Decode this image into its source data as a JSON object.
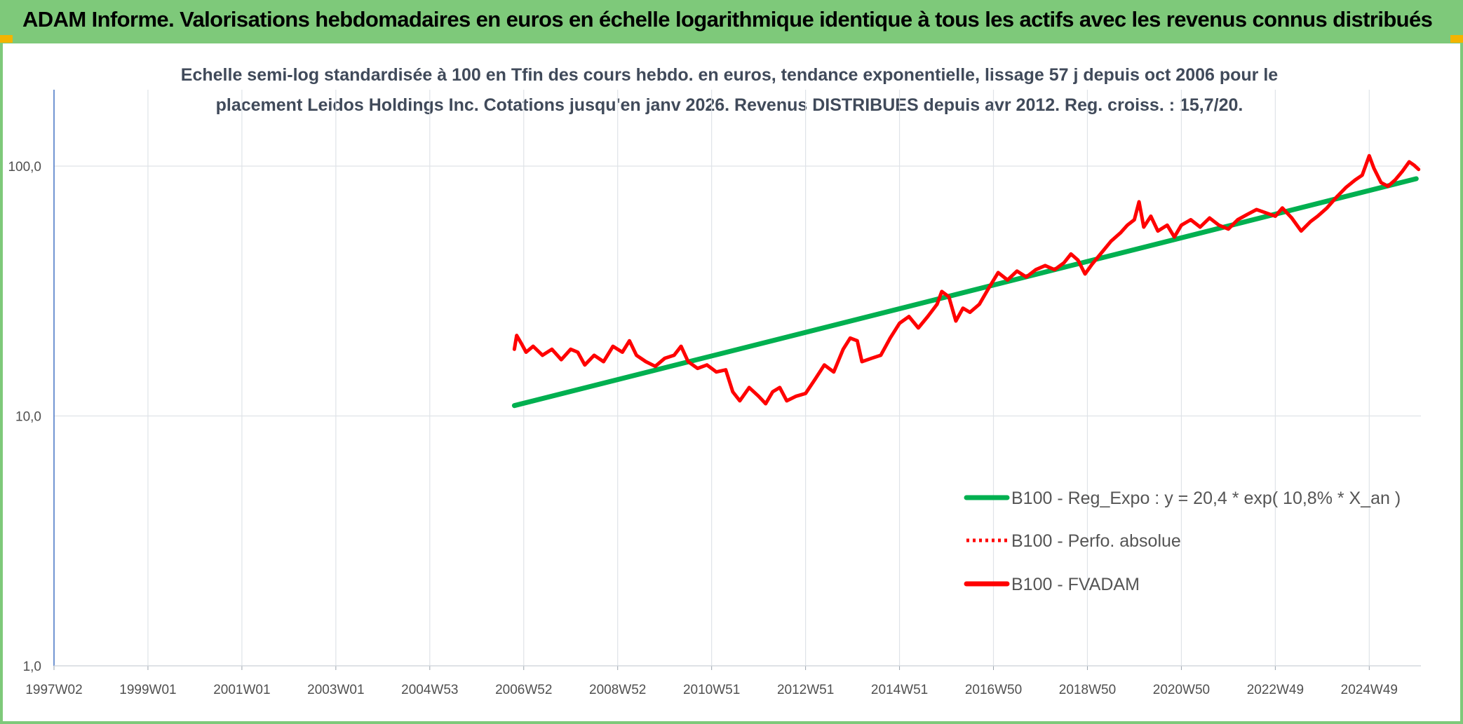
{
  "header": {
    "title": "ADAM Informe. Valorisations hebdomadaires en euros en échelle logarithmique identique à tous les actifs avec les revenus connus distribués"
  },
  "chart_data": {
    "type": "line",
    "title_line1": "Echelle semi-log standardisée à 100 en Tfin des cours hebdo. en euros, tendance exponentielle, lissage 57 j depuis oct 2006 pour le",
    "title_line2": "placement Leidos Holdings Inc. Cotations jusqu'en janv 2026. Revenus DISTRIBUES depuis avr 2012. Reg. croiss. : 15,7/20.",
    "y_scale": "log",
    "ylim": [
      1,
      200
    ],
    "y_ticks": [
      {
        "value": 100,
        "label": "100,0"
      },
      {
        "value": 10,
        "label": "10,0"
      },
      {
        "value": 1,
        "label": "1,0"
      }
    ],
    "xlim": [
      1997.0,
      2026.1
    ],
    "x_ticks": [
      {
        "x": 1997.0,
        "label": "1997W02"
      },
      {
        "x": 1999.0,
        "label": "1999W01"
      },
      {
        "x": 2001.0,
        "label": "2001W01"
      },
      {
        "x": 2003.0,
        "label": "2003W01"
      },
      {
        "x": 2005.0,
        "label": "2004W53"
      },
      {
        "x": 2007.0,
        "label": "2006W52"
      },
      {
        "x": 2009.0,
        "label": "2008W52"
      },
      {
        "x": 2011.0,
        "label": "2010W51"
      },
      {
        "x": 2013.0,
        "label": "2012W51"
      },
      {
        "x": 2015.0,
        "label": "2014W51"
      },
      {
        "x": 2017.0,
        "label": "2016W50"
      },
      {
        "x": 2019.0,
        "label": "2018W50"
      },
      {
        "x": 2021.0,
        "label": "2020W50"
      },
      {
        "x": 2023.0,
        "label": "2022W49"
      },
      {
        "x": 2025.0,
        "label": "2024W49"
      }
    ],
    "legend_position": "bottom-right",
    "series": [
      {
        "name": "B100 - Reg_Expo : y = 20,4 * exp( 10,8% *  X_an )",
        "color": "#00b050",
        "style": "solid",
        "points": [
          [
            2006.8,
            11.0
          ],
          [
            2026.0,
            89.0
          ]
        ]
      },
      {
        "name": "B100 - Perfo. absolue",
        "color": "#ff0000",
        "style": "dotted",
        "points": []
      },
      {
        "name": "B100 - FVADAM",
        "color": "#ff0000",
        "style": "solid",
        "points": [
          [
            2006.8,
            18.5
          ],
          [
            2006.85,
            21.0
          ],
          [
            2006.95,
            19.5
          ],
          [
            2007.05,
            18.0
          ],
          [
            2007.2,
            19.0
          ],
          [
            2007.4,
            17.5
          ],
          [
            2007.6,
            18.5
          ],
          [
            2007.8,
            16.8
          ],
          [
            2008.0,
            18.5
          ],
          [
            2008.15,
            18.0
          ],
          [
            2008.3,
            16.0
          ],
          [
            2008.5,
            17.5
          ],
          [
            2008.7,
            16.5
          ],
          [
            2008.9,
            19.0
          ],
          [
            2009.1,
            18.0
          ],
          [
            2009.25,
            20.0
          ],
          [
            2009.4,
            17.5
          ],
          [
            2009.6,
            16.5
          ],
          [
            2009.8,
            15.8
          ],
          [
            2010.0,
            17.0
          ],
          [
            2010.2,
            17.5
          ],
          [
            2010.35,
            19.0
          ],
          [
            2010.5,
            16.5
          ],
          [
            2010.7,
            15.5
          ],
          [
            2010.9,
            16.0
          ],
          [
            2011.1,
            15.0
          ],
          [
            2011.3,
            15.3
          ],
          [
            2011.45,
            12.5
          ],
          [
            2011.6,
            11.5
          ],
          [
            2011.8,
            13.0
          ],
          [
            2012.0,
            12.0
          ],
          [
            2012.15,
            11.2
          ],
          [
            2012.3,
            12.5
          ],
          [
            2012.45,
            13.0
          ],
          [
            2012.6,
            11.5
          ],
          [
            2012.8,
            12.0
          ],
          [
            2013.0,
            12.3
          ],
          [
            2013.2,
            14.0
          ],
          [
            2013.4,
            16.0
          ],
          [
            2013.6,
            15.0
          ],
          [
            2013.8,
            18.5
          ],
          [
            2013.95,
            20.5
          ],
          [
            2014.1,
            20.0
          ],
          [
            2014.2,
            16.5
          ],
          [
            2014.4,
            17.0
          ],
          [
            2014.6,
            17.5
          ],
          [
            2014.8,
            20.5
          ],
          [
            2015.0,
            23.5
          ],
          [
            2015.2,
            25.0
          ],
          [
            2015.4,
            22.5
          ],
          [
            2015.6,
            25.0
          ],
          [
            2015.8,
            28.0
          ],
          [
            2015.9,
            31.5
          ],
          [
            2016.05,
            30.0
          ],
          [
            2016.2,
            24.0
          ],
          [
            2016.35,
            27.0
          ],
          [
            2016.5,
            26.0
          ],
          [
            2016.7,
            28.0
          ],
          [
            2016.9,
            32.5
          ],
          [
            2017.1,
            37.5
          ],
          [
            2017.3,
            35.0
          ],
          [
            2017.5,
            38.0
          ],
          [
            2017.7,
            36.0
          ],
          [
            2017.9,
            38.5
          ],
          [
            2018.1,
            40.0
          ],
          [
            2018.3,
            38.5
          ],
          [
            2018.5,
            41.0
          ],
          [
            2018.65,
            44.5
          ],
          [
            2018.8,
            42.0
          ],
          [
            2018.95,
            37.0
          ],
          [
            2019.1,
            40.5
          ],
          [
            2019.3,
            45.0
          ],
          [
            2019.5,
            50.0
          ],
          [
            2019.7,
            54.0
          ],
          [
            2019.85,
            58.0
          ],
          [
            2020.0,
            61.0
          ],
          [
            2020.1,
            72.0
          ],
          [
            2020.2,
            57.0
          ],
          [
            2020.35,
            63.0
          ],
          [
            2020.5,
            55.0
          ],
          [
            2020.7,
            58.0
          ],
          [
            2020.85,
            52.0
          ],
          [
            2021.0,
            58.0
          ],
          [
            2021.2,
            61.0
          ],
          [
            2021.4,
            57.0
          ],
          [
            2021.6,
            62.0
          ],
          [
            2021.8,
            58.0
          ],
          [
            2022.0,
            56.0
          ],
          [
            2022.2,
            61.0
          ],
          [
            2022.4,
            64.0
          ],
          [
            2022.6,
            67.0
          ],
          [
            2022.8,
            65.0
          ],
          [
            2023.0,
            63.0
          ],
          [
            2023.15,
            68.0
          ],
          [
            2023.35,
            62.0
          ],
          [
            2023.55,
            55.0
          ],
          [
            2023.75,
            60.0
          ],
          [
            2023.9,
            63.0
          ],
          [
            2024.1,
            68.0
          ],
          [
            2024.3,
            75.0
          ],
          [
            2024.5,
            82.0
          ],
          [
            2024.7,
            88.0
          ],
          [
            2024.85,
            92.0
          ],
          [
            2025.0,
            110.0
          ],
          [
            2025.1,
            98.0
          ],
          [
            2025.25,
            86.0
          ],
          [
            2025.4,
            83.0
          ],
          [
            2025.55,
            88.0
          ],
          [
            2025.7,
            95.0
          ],
          [
            2025.85,
            104.0
          ],
          [
            2025.95,
            101.0
          ],
          [
            2026.05,
            97.0
          ]
        ]
      }
    ]
  }
}
